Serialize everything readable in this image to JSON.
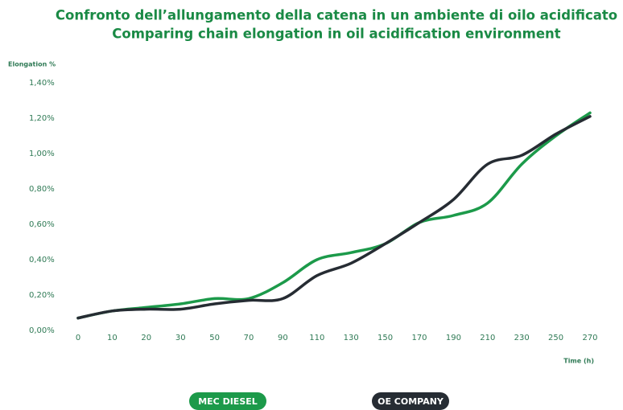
{
  "chart_data": {
    "type": "line",
    "title": "Confronto dell’allungamento della catena in un ambiente di oilo acidificato",
    "subtitle": "Comparing chain elongation in oil acidification environment",
    "y_label": "Elongation %",
    "x_label": "Time (h)",
    "categories": [
      "0",
      "10",
      "20",
      "30",
      "50",
      "70",
      "90",
      "110",
      "130",
      "150",
      "170",
      "190",
      "210",
      "230",
      "250",
      "270"
    ],
    "series": [
      {
        "name": "MEC DIESEL",
        "color": "#1c9a4a",
        "values": [
          0.07,
          0.11,
          0.13,
          0.15,
          0.18,
          0.18,
          0.27,
          0.4,
          0.44,
          0.49,
          0.61,
          0.65,
          0.72,
          0.94,
          1.1,
          1.23
        ]
      },
      {
        "name": "OE COMPANY",
        "color": "#262c33",
        "values": [
          0.07,
          0.11,
          0.12,
          0.12,
          0.15,
          0.17,
          0.18,
          0.31,
          0.38,
          0.49,
          0.61,
          0.74,
          0.94,
          0.99,
          1.11,
          1.21
        ]
      }
    ],
    "ylim": [
      0,
      1.4
    ],
    "yticks": [
      {
        "value": 0,
        "label": "0,00%"
      },
      {
        "value": 0.2,
        "label": "0,20%"
      },
      {
        "value": 0.4,
        "label": "0,40%"
      },
      {
        "value": 0.6,
        "label": "0,60%"
      },
      {
        "value": 0.8,
        "label": "0,80%"
      },
      {
        "value": 1.0,
        "label": "1,00%"
      },
      {
        "value": 1.2,
        "label": "1,20%"
      },
      {
        "value": 1.4,
        "label": "1,40%"
      }
    ],
    "grid": false
  }
}
